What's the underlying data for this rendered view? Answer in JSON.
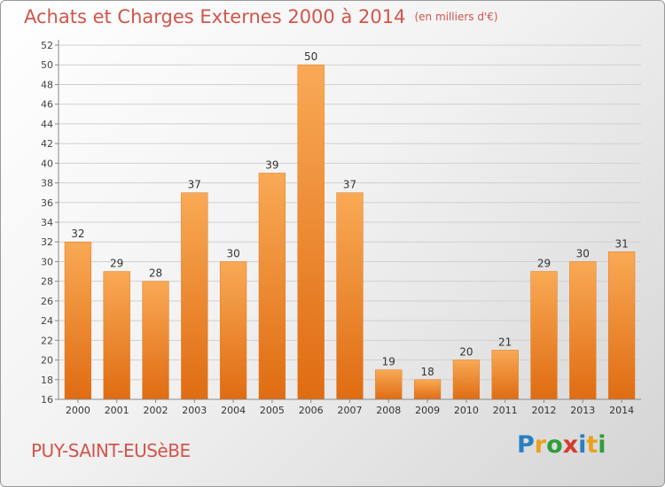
{
  "header": {
    "title": "Achats et Charges Externes 2000 à 2014",
    "subtitle": "(en milliers d'€)"
  },
  "commune": "PUY-SAINT-EUSèBE",
  "logo": {
    "letters": [
      "P",
      "r",
      "o",
      "x",
      "i",
      "t",
      "i"
    ],
    "colors": [
      "#2a7fc1",
      "#e8a21b",
      "#2e9e3a",
      "#d63a2f",
      "#2a7fc1",
      "#e8a21b",
      "#2e9e3a"
    ]
  },
  "chart_data": {
    "type": "bar",
    "title": "Achats et Charges Externes 2000 à 2014",
    "categories": [
      "2000",
      "2001",
      "2002",
      "2003",
      "2004",
      "2005",
      "2006",
      "2007",
      "2008",
      "2009",
      "2010",
      "2011",
      "2012",
      "2013",
      "2014"
    ],
    "values": [
      32,
      29,
      28,
      37,
      30,
      39,
      50,
      37,
      19,
      18,
      20,
      21,
      29,
      30,
      31
    ],
    "ylim": [
      16,
      52
    ],
    "yticks": [
      16,
      18,
      20,
      22,
      24,
      26,
      28,
      30,
      32,
      34,
      36,
      38,
      40,
      42,
      44,
      46,
      48,
      50,
      52
    ],
    "grid": true,
    "bar_color": "#f08a2a",
    "data_labels": true
  }
}
